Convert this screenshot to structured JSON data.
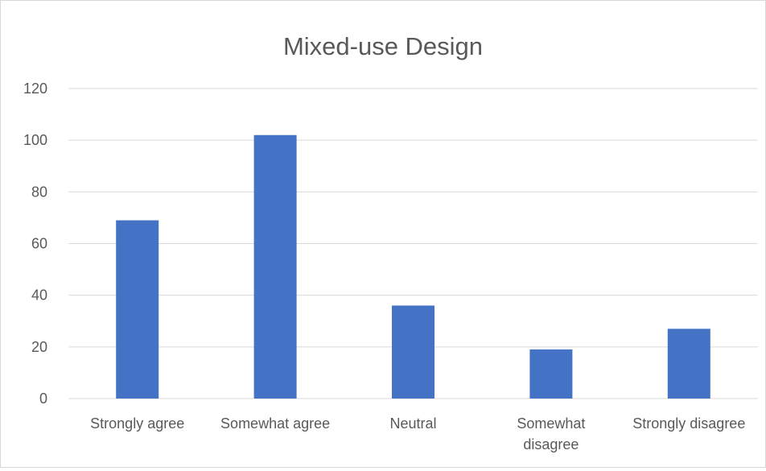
{
  "chart_data": {
    "type": "bar",
    "title": "Mixed-use Design",
    "categories": [
      [
        "Strongly agree"
      ],
      [
        "Somewhat agree"
      ],
      [
        "Neutral"
      ],
      [
        "Somewhat",
        "disagree"
      ],
      [
        "Strongly disagree"
      ]
    ],
    "series": [
      {
        "values": [
          69,
          102,
          36,
          19,
          27
        ]
      }
    ],
    "ylim": [
      0,
      120
    ],
    "yticks": [
      0,
      20,
      40,
      60,
      80,
      100,
      120
    ],
    "grid": true,
    "legend": "none",
    "colors": {
      "bar": "#4472C4",
      "grid": "#d9d9d9",
      "text": "#595959"
    }
  }
}
